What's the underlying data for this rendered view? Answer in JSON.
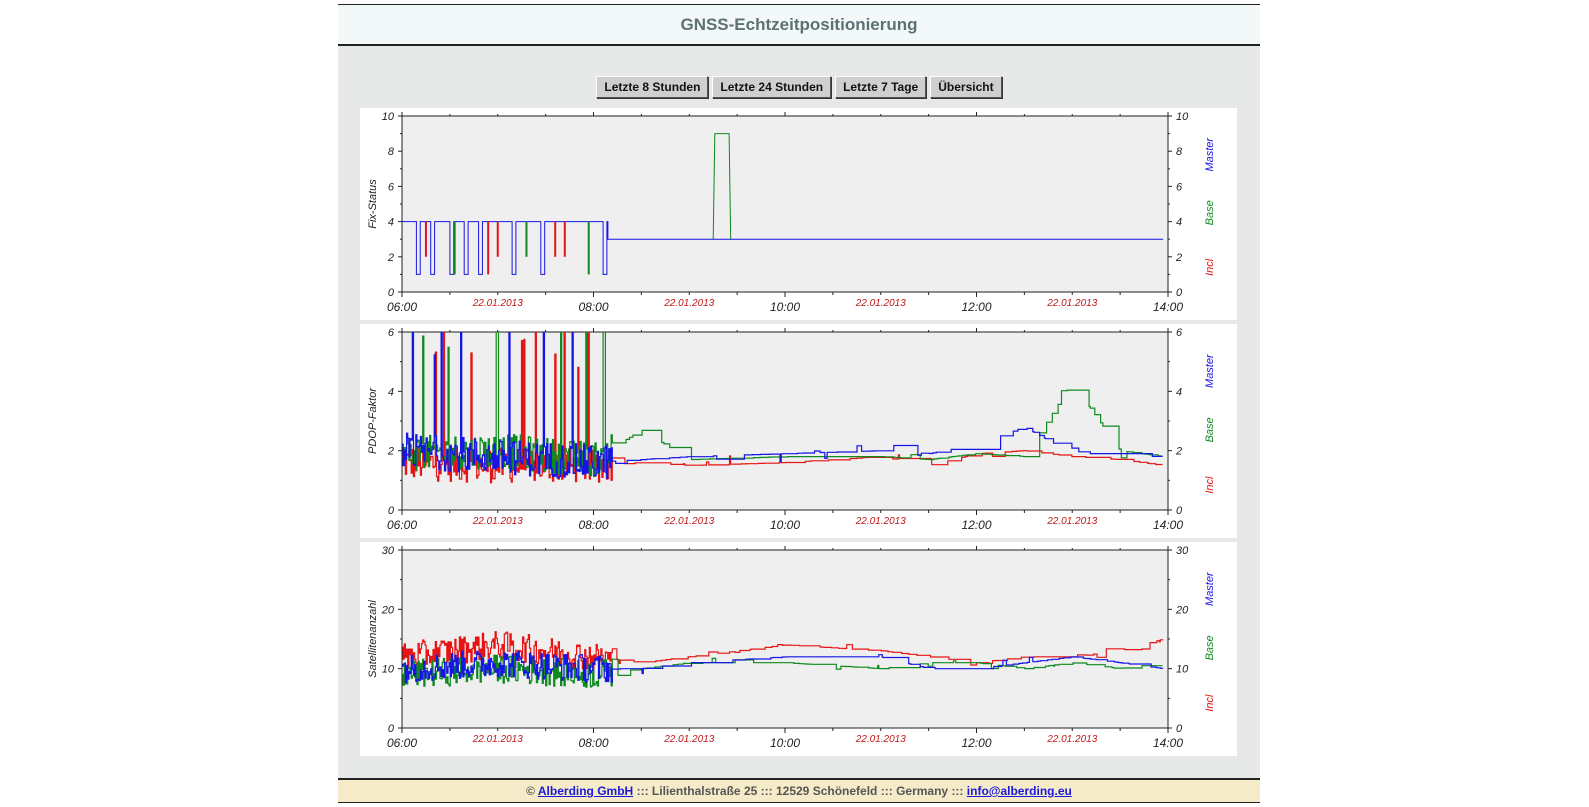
{
  "header": {
    "title": "GNSS-Echtzeitpositionierung"
  },
  "nav": {
    "buttons": [
      "Letzte 8 Stunden",
      "Letzte 24 Stunden",
      "Letzte 7 Tage",
      "Übersicht"
    ]
  },
  "colors": {
    "master": "#1515e6",
    "base": "#0f8a1f",
    "incl": "#e61414",
    "date": "#c01818"
  },
  "chart_data": [
    {
      "type": "line",
      "ylabel": "Fix-Status",
      "ylim": [
        0,
        10
      ],
      "yticks": [
        "0",
        "2",
        "4",
        "6",
        "8",
        "10"
      ],
      "xticks": [
        "06:00",
        "08:00",
        "10:00",
        "12:00",
        "14:00"
      ],
      "date_labels": [
        "22.01.2013",
        "22.01.2013",
        "22.01.2013",
        "22.01.2013"
      ],
      "legend": [
        "Master",
        "Base",
        "Incl"
      ],
      "series": [
        {
          "name": "Master",
          "x": [
            "06:00",
            "08:15",
            "08:18",
            "13:57"
          ],
          "values": [
            4,
            4,
            3,
            3
          ]
        },
        {
          "name": "Base",
          "x": [
            "09:15",
            "09:16",
            "09:25",
            "09:26"
          ],
          "values": [
            3,
            9,
            9,
            3
          ]
        }
      ]
    },
    {
      "type": "line",
      "ylabel": "PDOP-Faktor",
      "ylim": [
        0,
        6
      ],
      "yticks": [
        "0",
        "2",
        "4",
        "6"
      ],
      "xticks": [
        "06:00",
        "08:00",
        "10:00",
        "12:00",
        "14:00"
      ],
      "date_labels": [
        "22.01.2013",
        "22.01.2013",
        "22.01.2013",
        "22.01.2013"
      ],
      "legend": [
        "Master",
        "Base",
        "Incl"
      ],
      "series": [
        {
          "name": "Master",
          "x": [
            "06:00",
            "07:00",
            "08:00",
            "08:30",
            "09:00",
            "10:00",
            "11:00",
            "11:30",
            "12:00",
            "12:30",
            "13:00",
            "13:30",
            "13:57"
          ],
          "values": [
            2.0,
            1.8,
            1.6,
            1.7,
            1.8,
            1.9,
            2.0,
            1.9,
            2.2,
            2.8,
            1.9,
            1.9,
            1.9
          ]
        },
        {
          "name": "Base",
          "x": [
            "06:00",
            "07:00",
            "08:00",
            "08:30",
            "09:00",
            "10:00",
            "11:00",
            "11:30",
            "12:00",
            "12:30",
            "13:00",
            "13:30",
            "13:57"
          ],
          "values": [
            1.9,
            2.0,
            1.7,
            2.7,
            1.7,
            1.8,
            1.8,
            1.7,
            1.9,
            1.8,
            4.3,
            2.0,
            1.8
          ]
        },
        {
          "name": "Incl",
          "x": [
            "06:00",
            "07:00",
            "08:00",
            "08:30",
            "09:00",
            "10:00",
            "11:00",
            "11:30",
            "12:00",
            "12:30",
            "13:00",
            "13:30",
            "13:57"
          ],
          "values": [
            1.6,
            1.5,
            1.5,
            1.6,
            1.5,
            1.6,
            1.8,
            1.5,
            1.9,
            2.0,
            1.8,
            1.7,
            1.5
          ]
        }
      ]
    },
    {
      "type": "line",
      "ylabel": "Satellitenanzahl",
      "ylim": [
        0,
        30
      ],
      "yticks": [
        "0",
        "10",
        "20",
        "30"
      ],
      "xticks": [
        "06:00",
        "08:00",
        "10:00",
        "12:00",
        "14:00"
      ],
      "date_labels": [
        "22.01.2013",
        "22.01.2013",
        "22.01.2013",
        "22.01.2013"
      ],
      "legend": [
        "Master",
        "Base",
        "Incl"
      ],
      "series": [
        {
          "name": "Master",
          "x": [
            "06:00",
            "07:00",
            "08:00",
            "08:30",
            "09:00",
            "10:00",
            "11:00",
            "11:30",
            "12:00",
            "12:30",
            "13:00",
            "13:30",
            "13:57"
          ],
          "values": [
            10,
            11,
            10,
            10,
            11,
            12,
            12,
            10,
            10,
            11,
            12,
            11,
            10
          ]
        },
        {
          "name": "Base",
          "x": [
            "06:00",
            "07:00",
            "08:00",
            "08:30",
            "09:00",
            "10:00",
            "11:00",
            "11:30",
            "12:00",
            "12:30",
            "13:00",
            "13:30",
            "13:57"
          ],
          "values": [
            9,
            10,
            9,
            10,
            11,
            11,
            10,
            11,
            11,
            10,
            11,
            10,
            11
          ]
        },
        {
          "name": "Incl",
          "x": [
            "06:00",
            "07:00",
            "08:00",
            "08:30",
            "09:00",
            "10:00",
            "11:00",
            "11:30",
            "12:00",
            "12:30",
            "13:00",
            "13:30",
            "13:57"
          ],
          "values": [
            12,
            14,
            12,
            11,
            12,
            14,
            13,
            12,
            11,
            12,
            12,
            13,
            15
          ]
        }
      ]
    }
  ],
  "footer": {
    "copyright": "©",
    "company": "Alberding GmbH",
    "sep1": ":::",
    "street": "Lilienthalstraße 25",
    "sep2": ":::",
    "city": "12529 Schönefeld",
    "sep3": ":::",
    "country": "Germany",
    "sep4": ":::",
    "email": "info@alberding.eu"
  }
}
